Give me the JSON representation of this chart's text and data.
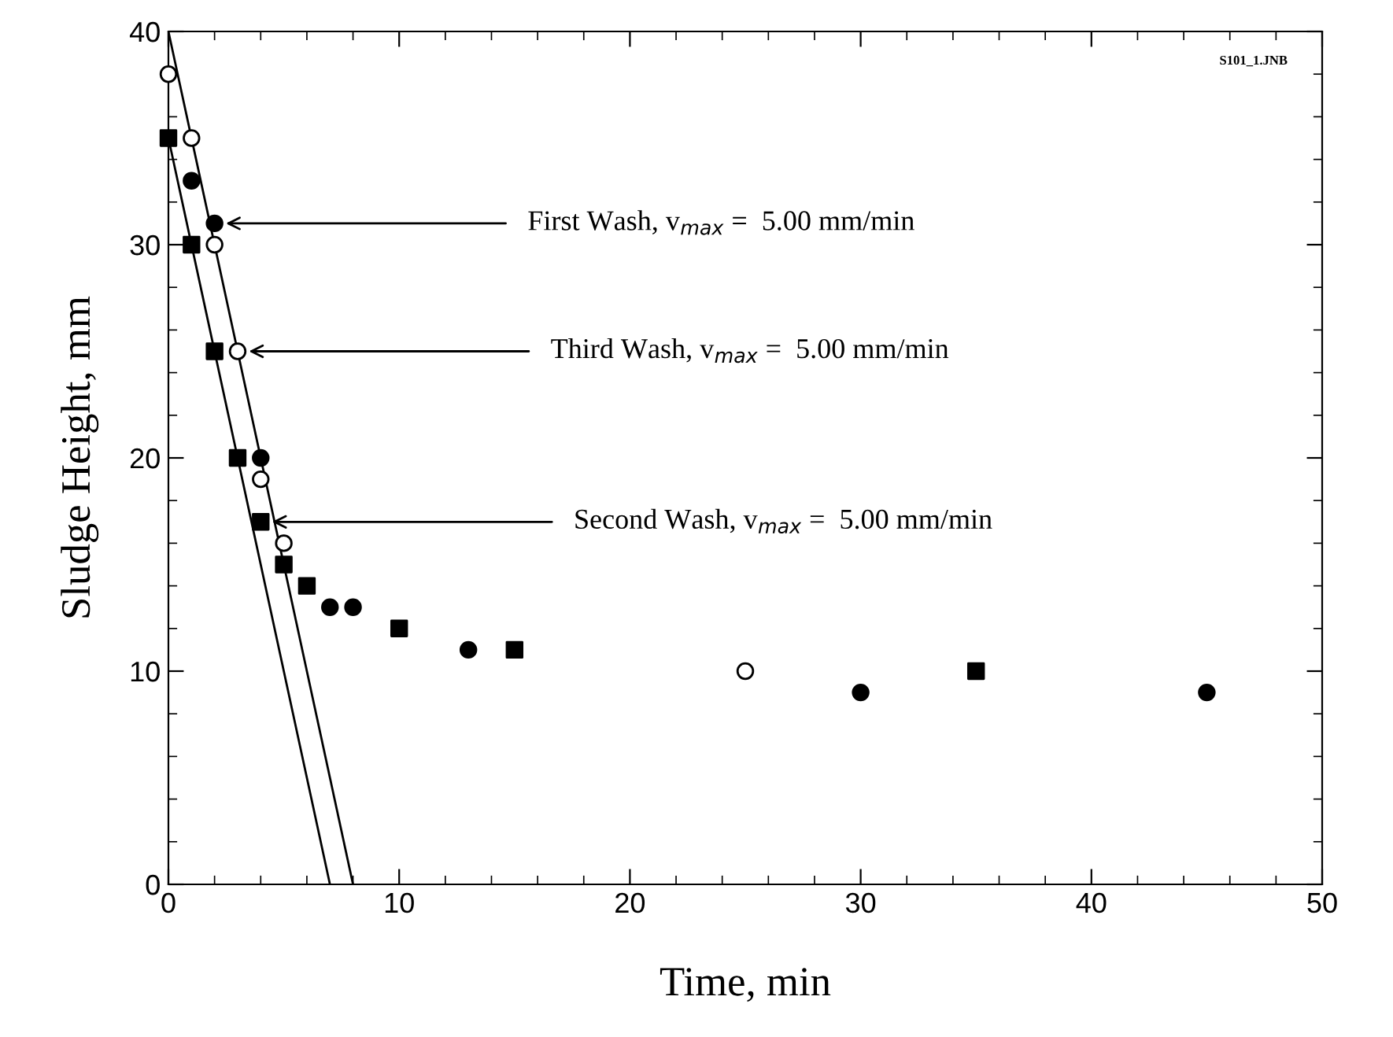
{
  "chart_data": {
    "type": "scatter",
    "xlabel": "Time, min",
    "ylabel": "Sludge Height, mm",
    "xlim": [
      0,
      50
    ],
    "xticks": [
      0,
      10,
      20,
      30,
      40,
      50
    ],
    "ylim": [
      0,
      40
    ],
    "yticks": [
      0,
      10,
      20,
      30,
      40
    ],
    "grid": false,
    "legend": false,
    "series": [
      {
        "color": "#000000",
        "marker": "circle",
        "x": [
          1,
          2,
          4,
          7,
          8,
          13,
          30,
          45
        ],
        "values": [
          33,
          31,
          20,
          13,
          13,
          11,
          9,
          9
        ]
      },
      {
        "color": "#000000",
        "marker": "square",
        "x": [
          0,
          1,
          2,
          3,
          4,
          5,
          6,
          10,
          15,
          35
        ],
        "values": [
          35,
          30,
          25,
          20,
          17,
          15,
          14,
          12,
          11,
          10
        ]
      },
      {
        "color": "#ffffff",
        "marker": "circle",
        "x": [
          0,
          1,
          2,
          3,
          4,
          5,
          25
        ],
        "values": [
          38,
          35,
          30,
          25,
          19,
          16,
          10
        ]
      },
      {
        "type": "line",
        "color": "#000000",
        "marker": "none",
        "line_style": "solid",
        "x": [
          0,
          8
        ],
        "values": [
          40,
          0
        ]
      },
      {
        "type": "line",
        "color": "#000000",
        "marker": "none",
        "line_style": "solid",
        "x": [
          0,
          7
        ],
        "values": [
          35,
          0
        ]
      }
    ],
    "annotations": [
      {
        "text": "First Wash, v$_{max}$ =  5.00 mm/min",
        "x": 2.3,
        "y": 31
      },
      {
        "text": "Third Wash, v$_{max}$ =  5.00 mm/min",
        "x": 3.3,
        "y": 25
      },
      {
        "text": "Second Wash, v$_{max}$ =  5.00 mm/min",
        "x": 4.3,
        "y": 17
      },
      "S101_1.JNB"
    ]
  }
}
